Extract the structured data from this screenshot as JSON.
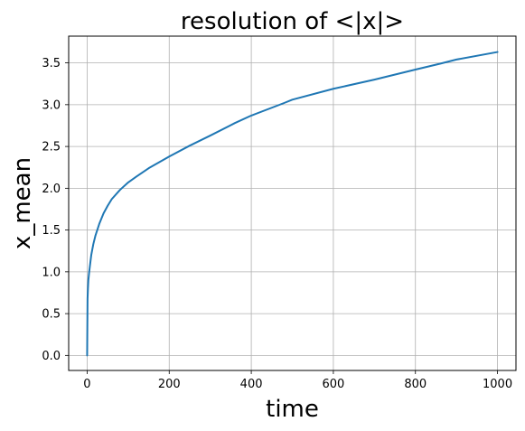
{
  "chart_data": {
    "type": "line",
    "title": "resolution of <|x|>",
    "xlabel": "time",
    "ylabel": "x_mean",
    "xlim": [
      -45,
      1045
    ],
    "ylim": [
      -0.18,
      3.82
    ],
    "xticks": [
      0,
      200,
      400,
      600,
      800,
      1000
    ],
    "xtick_labels": [
      "0",
      "200",
      "400",
      "600",
      "800",
      "1000"
    ],
    "yticks": [
      0.0,
      0.5,
      1.0,
      1.5,
      2.0,
      2.5,
      3.0,
      3.5
    ],
    "ytick_labels": [
      "0.0",
      "0.5",
      "1.0",
      "1.5",
      "2.0",
      "2.5",
      "3.0",
      "3.5"
    ],
    "grid": true,
    "series": [
      {
        "color": "#1f77b4",
        "x": [
          0,
          1,
          2,
          3,
          5,
          8,
          10,
          15,
          20,
          30,
          40,
          50,
          60,
          80,
          100,
          120,
          150,
          200,
          250,
          300,
          360,
          400,
          480,
          500,
          600,
          700,
          800,
          860,
          900,
          1000
        ],
        "y": [
          0.0,
          0.68,
          0.8,
          0.9,
          1.0,
          1.12,
          1.2,
          1.33,
          1.43,
          1.58,
          1.7,
          1.79,
          1.87,
          1.98,
          2.07,
          2.14,
          2.24,
          2.38,
          2.51,
          2.63,
          2.78,
          2.87,
          3.02,
          3.06,
          3.19,
          3.3,
          3.42,
          3.49,
          3.54,
          3.63
        ]
      }
    ]
  }
}
